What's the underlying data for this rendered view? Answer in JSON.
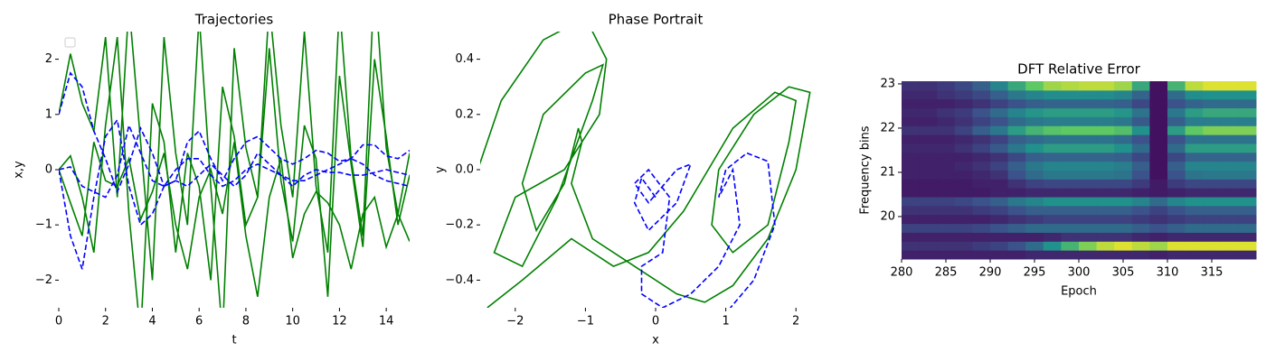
{
  "chart_data": [
    {
      "type": "line",
      "title": "Trajectories",
      "xlabel": "t",
      "ylabel": "x,y",
      "xlim": [
        0,
        15
      ],
      "ylim": [
        -2.5,
        2.5
      ],
      "xticks": [
        0,
        2,
        4,
        6,
        8,
        10,
        12,
        14
      ],
      "yticks": [
        {
          "value": -2,
          "label": "−2"
        },
        {
          "value": -1,
          "label": "−1"
        },
        0,
        1,
        2
      ],
      "x": [
        0,
        0.5,
        1,
        1.5,
        2,
        2.5,
        3,
        3.5,
        4,
        4.5,
        5,
        5.5,
        6,
        6.5,
        7,
        7.5,
        8,
        8.5,
        9,
        9.5,
        10,
        10.5,
        11,
        11.5,
        12,
        12.5,
        13,
        13.5,
        14,
        14.5,
        15
      ],
      "series": [
        {
          "color": "#008000",
          "dash": false,
          "values": [
            1,
            2.1,
            1.2,
            0.7,
            2.4,
            -0.5,
            3,
            0.5,
            -2,
            2.4,
            0.3,
            -1,
            2.8,
            -0.3,
            -3,
            2.2,
            0.4,
            -0.5,
            3,
            0.8,
            -0.5,
            2.5,
            -0.3,
            -1.5,
            3,
            0.2,
            -1.2,
            3.5,
            0.4,
            -0.8,
            0.3
          ]
        },
        {
          "color": "#008000",
          "dash": false,
          "values": [
            0,
            0.25,
            -0.5,
            -1.5,
            0.8,
            2.4,
            -0.8,
            -3,
            1.2,
            0.5,
            -1.5,
            0.3,
            -0.3,
            -2,
            1.5,
            0.6,
            -1,
            -0.5,
            2.2,
            -0.2,
            -1.3,
            0.8,
            0.2,
            -2.3,
            1.7,
            0.1,
            -1.4,
            2,
            0.6,
            -1,
            -0.1
          ]
        },
        {
          "color": "#008000",
          "dash": false,
          "values": [
            0,
            -0.6,
            -1.2,
            0.5,
            -0.2,
            -0.3,
            0.2,
            -0.9,
            -0.4,
            0.3,
            -1,
            -1.8,
            -0.5,
            0,
            -0.8,
            0.5,
            -1.2,
            -2.3,
            -0.5,
            0.2,
            -1.6,
            -0.8,
            -0.4,
            -0.6,
            -1,
            -1.8,
            -0.8,
            -0.5,
            -1.4,
            -0.8,
            -1.3
          ]
        },
        {
          "color": "#0000ff",
          "dash": true,
          "values": [
            1,
            1.75,
            1.5,
            0.7,
            0.2,
            -0.4,
            0.1,
            0.75,
            0.3,
            -0.3,
            -0.2,
            0.5,
            0.7,
            0.2,
            -0.2,
            0.2,
            0.5,
            0.6,
            0.4,
            0.2,
            0.1,
            0.2,
            0.35,
            0.3,
            0.15,
            0.2,
            0.45,
            0.45,
            0.25,
            0.2,
            0.35
          ]
        },
        {
          "color": "#0000ff",
          "dash": true,
          "values": [
            0,
            0.05,
            -0.3,
            -0.4,
            -0.5,
            -0.1,
            0.8,
            0.3,
            -0.2,
            -0.3,
            0,
            0.2,
            0.2,
            -0.1,
            -0.3,
            -0.2,
            0,
            0.1,
            0,
            -0.1,
            -0.2,
            -0.2,
            -0.1,
            0,
            0.1,
            0.2,
            0.1,
            -0.1,
            -0.2,
            -0.25,
            -0.3
          ]
        },
        {
          "color": "#0000ff",
          "dash": true,
          "values": [
            0,
            -1.2,
            -1.8,
            -0.5,
            0.6,
            0.9,
            -0.3,
            -1,
            -0.8,
            -0.3,
            -0.2,
            -0.3,
            -0.1,
            0.1,
            -0.1,
            -0.3,
            -0.1,
            0.3,
            0.1,
            -0.1,
            -0.3,
            -0.1,
            0,
            -0.05,
            -0.05,
            -0.1,
            -0.1,
            -0.05,
            0,
            -0.05,
            -0.1
          ]
        }
      ]
    },
    {
      "type": "line",
      "title": "Phase Portrait",
      "xlabel": "x",
      "ylabel": "y",
      "xlim": [
        -2.5,
        2.5
      ],
      "ylim": [
        -0.5,
        0.5
      ],
      "xticks": [
        {
          "value": -2,
          "label": "−2"
        },
        {
          "value": -1,
          "label": "−1"
        },
        0,
        1,
        2
      ],
      "yticks": [
        {
          "value": -0.4,
          "label": "−0.4"
        },
        {
          "value": -0.2,
          "label": "−0.2"
        },
        {
          "value": 0,
          "label": "0.0"
        },
        0.2,
        0.4
      ],
      "series": [
        {
          "color": "#008000",
          "dash": false,
          "x": [
            -2.6,
            -2.2,
            -1.6,
            -1,
            -0.7,
            -0.8,
            -1.3,
            -2,
            -2.3,
            -1.9,
            -1.4,
            -0.9,
            -0.75,
            -1,
            -1.6,
            -1.9,
            -1.7,
            -1.3,
            -1.1,
            -1.05,
            -1.2,
            -0.9,
            -0.3,
            0.3,
            0.7,
            1.1,
            1.6,
            2,
            2.2,
            1.9,
            1.4,
            0.9,
            0.8,
            1.1,
            1.6,
            1.9,
            2,
            1.7,
            1.1,
            0.4,
            -0.1,
            -0.6,
            -1.2,
            -1.9,
            -2.4
          ],
          "values": [
            -0.05,
            0.25,
            0.47,
            0.55,
            0.4,
            0.2,
            0,
            -0.1,
            -0.3,
            -0.35,
            -0.1,
            0.25,
            0.38,
            0.35,
            0.2,
            -0.05,
            -0.22,
            -0.05,
            0.15,
            0.1,
            -0.05,
            -0.25,
            -0.35,
            -0.45,
            -0.48,
            -0.42,
            -0.25,
            0,
            0.28,
            0.3,
            0.2,
            0,
            -0.2,
            -0.3,
            -0.2,
            0.1,
            0.25,
            0.28,
            0.15,
            -0.15,
            -0.3,
            -0.35,
            -0.25,
            -0.4,
            -0.5
          ]
        },
        {
          "color": "#0000ff",
          "dash": true,
          "x": [
            0,
            -0.2,
            -0.3,
            -0.1,
            0.3,
            0.5,
            0.3,
            -0.1,
            -0.3,
            -0.1,
            0.2,
            0.1,
            -0.2,
            -0.2,
            0.1,
            0.5,
            0.9,
            1.2,
            1.1,
            0.9,
            1,
            1.3,
            1.6,
            1.7,
            1.4,
            1
          ],
          "values": [
            -0.1,
            -0.03,
            -0.12,
            -0.22,
            -0.12,
            0.02,
            0,
            -0.12,
            -0.05,
            0,
            -0.1,
            -0.3,
            -0.35,
            -0.45,
            -0.5,
            -0.45,
            -0.35,
            -0.2,
            0,
            -0.1,
            0,
            0.06,
            0.03,
            -0.2,
            -0.4,
            -0.52
          ]
        }
      ]
    },
    {
      "type": "heatmap",
      "title": "DFT Relative Error",
      "xlabel": "Epoch",
      "ylabel": "Frequency bins",
      "xlim": [
        280,
        320
      ],
      "ylim": [
        19.04,
        23.06
      ],
      "colormap": "viridis",
      "zlim": [
        0,
        1
      ],
      "xticks": [
        280,
        285,
        290,
        295,
        300,
        305,
        310,
        315
      ],
      "yticks": [
        20,
        21,
        22,
        23
      ],
      "z": [
        [
          0.1,
          0.1,
          0.1,
          0.1,
          0.1,
          0.1,
          0.1,
          0.12,
          0.12,
          0.12,
          0.12,
          0.12,
          0.12,
          0.12,
          0.1,
          0.12,
          0.12,
          0.12,
          0.12,
          0.12
        ],
        [
          0.15,
          0.15,
          0.15,
          0.15,
          0.18,
          0.2,
          0.25,
          0.35,
          0.5,
          0.65,
          0.8,
          0.9,
          0.95,
          0.9,
          0.85,
          0.95,
          0.95,
          0.95,
          0.95,
          0.95
        ],
        [
          0.1,
          0.1,
          0.1,
          0.1,
          0.1,
          0.1,
          0.1,
          0.1,
          0.12,
          0.15,
          0.15,
          0.15,
          0.15,
          0.12,
          0.1,
          0.12,
          0.12,
          0.12,
          0.12,
          0.12
        ],
        [
          0.2,
          0.2,
          0.2,
          0.2,
          0.22,
          0.25,
          0.3,
          0.35,
          0.35,
          0.35,
          0.35,
          0.35,
          0.35,
          0.3,
          0.25,
          0.3,
          0.35,
          0.35,
          0.35,
          0.35
        ],
        [
          0.1,
          0.1,
          0.1,
          0.1,
          0.1,
          0.12,
          0.15,
          0.18,
          0.2,
          0.2,
          0.2,
          0.2,
          0.2,
          0.18,
          0.15,
          0.18,
          0.2,
          0.2,
          0.2,
          0.2
        ],
        [
          0.15,
          0.15,
          0.15,
          0.15,
          0.18,
          0.2,
          0.25,
          0.3,
          0.3,
          0.3,
          0.3,
          0.3,
          0.3,
          0.25,
          0.2,
          0.25,
          0.3,
          0.3,
          0.3,
          0.3
        ],
        [
          0.2,
          0.2,
          0.2,
          0.22,
          0.25,
          0.3,
          0.4,
          0.45,
          0.5,
          0.5,
          0.5,
          0.5,
          0.5,
          0.45,
          0.35,
          0.45,
          0.5,
          0.5,
          0.5,
          0.5
        ],
        [
          0.08,
          0.08,
          0.08,
          0.08,
          0.08,
          0.1,
          0.1,
          0.12,
          0.12,
          0.12,
          0.12,
          0.12,
          0.12,
          0.1,
          0.08,
          0.1,
          0.12,
          0.12,
          0.12,
          0.12
        ],
        [
          0.08,
          0.08,
          0.08,
          0.08,
          0.1,
          0.1,
          0.15,
          0.2,
          0.22,
          0.22,
          0.22,
          0.22,
          0.22,
          0.18,
          0.08,
          0.18,
          0.22,
          0.22,
          0.22,
          0.22
        ],
        [
          0.1,
          0.1,
          0.1,
          0.1,
          0.12,
          0.15,
          0.25,
          0.35,
          0.4,
          0.4,
          0.4,
          0.4,
          0.38,
          0.25,
          0.05,
          0.25,
          0.38,
          0.4,
          0.4,
          0.4
        ],
        [
          0.1,
          0.1,
          0.1,
          0.12,
          0.15,
          0.2,
          0.3,
          0.4,
          0.45,
          0.45,
          0.45,
          0.45,
          0.42,
          0.3,
          0.05,
          0.3,
          0.45,
          0.45,
          0.45,
          0.45
        ],
        [
          0.1,
          0.1,
          0.1,
          0.1,
          0.12,
          0.15,
          0.22,
          0.3,
          0.32,
          0.32,
          0.32,
          0.32,
          0.3,
          0.22,
          0.05,
          0.22,
          0.32,
          0.32,
          0.32,
          0.32
        ],
        [
          0.12,
          0.12,
          0.12,
          0.15,
          0.2,
          0.28,
          0.4,
          0.5,
          0.55,
          0.55,
          0.55,
          0.55,
          0.5,
          0.35,
          0.05,
          0.35,
          0.55,
          0.55,
          0.55,
          0.55
        ],
        [
          0.1,
          0.1,
          0.1,
          0.12,
          0.15,
          0.2,
          0.3,
          0.35,
          0.38,
          0.38,
          0.38,
          0.38,
          0.35,
          0.25,
          0.05,
          0.25,
          0.38,
          0.38,
          0.38,
          0.38
        ],
        [
          0.15,
          0.15,
          0.15,
          0.2,
          0.3,
          0.4,
          0.55,
          0.65,
          0.72,
          0.75,
          0.75,
          0.75,
          0.7,
          0.5,
          0.05,
          0.55,
          0.75,
          0.8,
          0.8,
          0.8
        ],
        [
          0.1,
          0.1,
          0.12,
          0.15,
          0.2,
          0.25,
          0.35,
          0.4,
          0.42,
          0.42,
          0.42,
          0.42,
          0.4,
          0.28,
          0.05,
          0.3,
          0.42,
          0.42,
          0.42,
          0.42
        ],
        [
          0.12,
          0.12,
          0.15,
          0.18,
          0.25,
          0.35,
          0.45,
          0.52,
          0.55,
          0.55,
          0.55,
          0.55,
          0.52,
          0.38,
          0.05,
          0.4,
          0.55,
          0.6,
          0.6,
          0.6
        ],
        [
          0.1,
          0.1,
          0.1,
          0.12,
          0.15,
          0.2,
          0.25,
          0.3,
          0.32,
          0.32,
          0.32,
          0.32,
          0.3,
          0.22,
          0.05,
          0.25,
          0.32,
          0.35,
          0.35,
          0.35
        ],
        [
          0.12,
          0.12,
          0.15,
          0.18,
          0.22,
          0.3,
          0.4,
          0.45,
          0.48,
          0.48,
          0.48,
          0.48,
          0.45,
          0.32,
          0.05,
          0.35,
          0.48,
          0.5,
          0.5,
          0.5
        ],
        [
          0.15,
          0.15,
          0.18,
          0.22,
          0.3,
          0.45,
          0.6,
          0.75,
          0.85,
          0.88,
          0.9,
          0.9,
          0.85,
          0.6,
          0.05,
          0.65,
          0.9,
          0.95,
          0.95,
          0.95
        ]
      ]
    }
  ]
}
